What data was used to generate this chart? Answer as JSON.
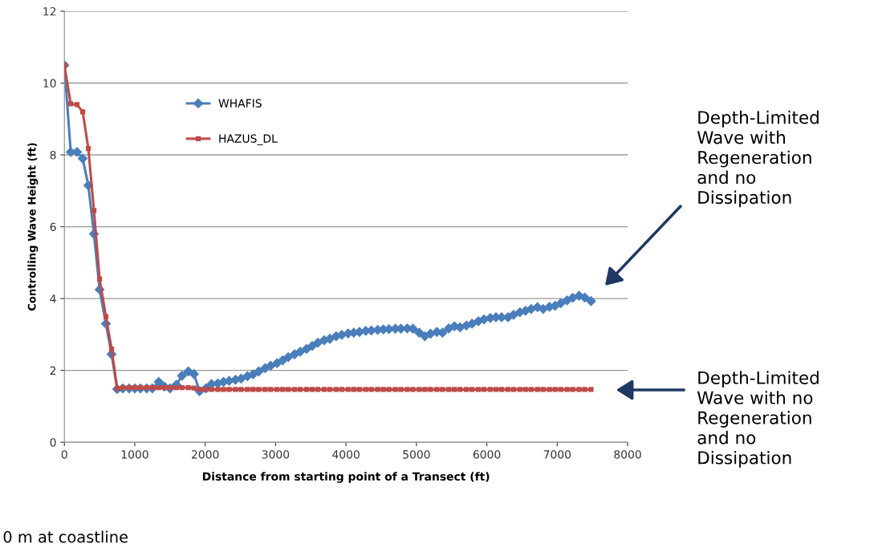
{
  "chart_data": {
    "type": "line",
    "xlabel": "Distance from starting point of a Transect (ft)",
    "ylabel": "Controlling Wave Height (ft)",
    "xlim": [
      0,
      8000
    ],
    "xticks": [
      0,
      1000,
      2000,
      3000,
      4000,
      5000,
      6000,
      7000,
      8000
    ],
    "ylim": [
      0,
      12
    ],
    "yticks": [
      0,
      2,
      4,
      6,
      8,
      10,
      12
    ],
    "grid": "y",
    "legend": "top center",
    "line_style": "solid",
    "series": [
      {
        "name": "WHAFIS",
        "color": "#4a7ebb",
        "marker": "diamond",
        "x": [
          0,
          90,
          180,
          260,
          340,
          420,
          500,
          590,
          670,
          750,
          830,
          920,
          1000,
          1080,
          1170,
          1250,
          1340,
          1420,
          1500,
          1590,
          1670,
          1760,
          1840,
          1920,
          2010,
          2090,
          2180,
          2260,
          2340,
          2430,
          2510,
          2600,
          2680,
          2760,
          2850,
          2930,
          3020,
          3100,
          3180,
          3270,
          3350,
          3440,
          3520,
          3600,
          3690,
          3770,
          3860,
          3940,
          4030,
          4110,
          4190,
          4280,
          4360,
          4450,
          4530,
          4610,
          4700,
          4780,
          4870,
          4950,
          5040,
          5120,
          5200,
          5290,
          5370,
          5460,
          5540,
          5620,
          5710,
          5790,
          5880,
          5960,
          6050,
          6130,
          6210,
          6300,
          6380,
          6470,
          6550,
          6630,
          6720,
          6800,
          6890,
          6970,
          7050,
          7140,
          7220,
          7310,
          7390,
          7480
        ],
        "values": [
          10.5,
          8.08,
          8.08,
          7.9,
          7.15,
          5.8,
          4.25,
          3.3,
          2.45,
          1.48,
          1.5,
          1.5,
          1.5,
          1.5,
          1.5,
          1.5,
          1.68,
          1.55,
          1.5,
          1.6,
          1.85,
          1.97,
          1.9,
          1.42,
          1.5,
          1.62,
          1.64,
          1.68,
          1.71,
          1.74,
          1.77,
          1.84,
          1.89,
          1.97,
          2.06,
          2.13,
          2.2,
          2.28,
          2.37,
          2.45,
          2.52,
          2.6,
          2.68,
          2.77,
          2.84,
          2.88,
          2.95,
          2.99,
          3.03,
          3.05,
          3.07,
          3.1,
          3.11,
          3.13,
          3.14,
          3.15,
          3.16,
          3.16,
          3.17,
          3.16,
          3.05,
          2.95,
          3.02,
          3.07,
          3.05,
          3.17,
          3.23,
          3.2,
          3.25,
          3.3,
          3.37,
          3.42,
          3.46,
          3.48,
          3.48,
          3.48,
          3.55,
          3.62,
          3.66,
          3.71,
          3.76,
          3.71,
          3.77,
          3.8,
          3.87,
          3.95,
          4.02,
          4.08,
          4.03,
          3.93
        ]
      },
      {
        "name": "HAZUS_DL",
        "color": "#be4b48",
        "marker": "square",
        "x": [
          0,
          90,
          180,
          260,
          340,
          420,
          500,
          590,
          670,
          750,
          830,
          920,
          1000,
          1080,
          1170,
          1250,
          1340,
          1420,
          1500,
          1590,
          1670,
          1760,
          1840,
          1920,
          2010,
          2090,
          2180,
          2260,
          2340,
          2430,
          2510,
          2600,
          2680,
          2760,
          2850,
          2930,
          3020,
          3100,
          3180,
          3270,
          3350,
          3440,
          3520,
          3600,
          3690,
          3770,
          3860,
          3940,
          4030,
          4110,
          4190,
          4280,
          4360,
          4450,
          4530,
          4610,
          4700,
          4780,
          4870,
          4950,
          5040,
          5120,
          5200,
          5290,
          5370,
          5460,
          5540,
          5620,
          5710,
          5790,
          5880,
          5960,
          6050,
          6130,
          6210,
          6300,
          6380,
          6470,
          6550,
          6630,
          6720,
          6800,
          6890,
          6970,
          7050,
          7140,
          7220,
          7310,
          7390,
          7480
        ],
        "values": [
          10.5,
          9.42,
          9.4,
          9.2,
          8.18,
          6.45,
          4.55,
          3.5,
          2.6,
          1.5,
          1.52,
          1.52,
          1.52,
          1.52,
          1.52,
          1.52,
          1.52,
          1.52,
          1.52,
          1.52,
          1.52,
          1.52,
          1.51,
          1.47,
          1.47,
          1.47,
          1.47,
          1.47,
          1.47,
          1.47,
          1.47,
          1.47,
          1.47,
          1.47,
          1.47,
          1.47,
          1.47,
          1.47,
          1.47,
          1.47,
          1.47,
          1.47,
          1.47,
          1.47,
          1.47,
          1.47,
          1.47,
          1.47,
          1.47,
          1.47,
          1.47,
          1.47,
          1.47,
          1.47,
          1.47,
          1.47,
          1.47,
          1.47,
          1.47,
          1.47,
          1.47,
          1.47,
          1.47,
          1.47,
          1.47,
          1.47,
          1.47,
          1.47,
          1.47,
          1.47,
          1.47,
          1.47,
          1.47,
          1.47,
          1.47,
          1.47,
          1.47,
          1.47,
          1.47,
          1.47,
          1.47,
          1.47,
          1.47,
          1.47,
          1.47,
          1.47,
          1.47,
          1.47,
          1.47,
          1.47
        ]
      }
    ],
    "annotations": [
      "Depth-Limited\nWave with\nRegeneration\nand no\nDissipation",
      "Depth-Limited\nWave with no\nRegeneration\nand no\nDissipation",
      "0 m at coastline"
    ]
  }
}
